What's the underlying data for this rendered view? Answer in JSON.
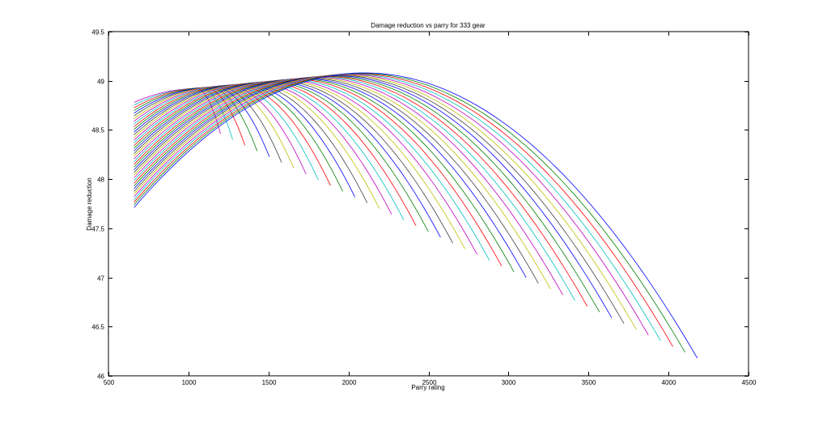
{
  "chart_data": {
    "type": "line",
    "title": "Damage reduction vs parry for 333 gear",
    "xlabel": "Parry rating",
    "ylabel": "Damage reduction",
    "xlim": [
      500,
      4500
    ],
    "ylim": [
      46,
      49.5
    ],
    "xticks": [
      500,
      1000,
      1500,
      2000,
      2500,
      3000,
      3500,
      4000,
      4500
    ],
    "xtick_labels": [
      "500",
      "1000",
      "1500",
      "2000",
      "2500",
      "3000",
      "3500",
      "4000",
      "4500"
    ],
    "yticks": [
      46,
      46.5,
      47,
      47.5,
      48,
      48.5,
      49,
      49.5
    ],
    "ytick_labels": [
      "46",
      "46.5",
      "47",
      "47.5",
      "48",
      "48.5",
      "49",
      "49.5"
    ],
    "grid": false,
    "legend": "none",
    "series_colors": [
      "#0000ff",
      "#008000",
      "#ff0000",
      "#00bfbf",
      "#bf00bf",
      "#bfbf00",
      "#404040"
    ],
    "series_count": 40,
    "series_shape": {
      "x_start": 660,
      "end_first": {
        "x": 1200,
        "y": 48.46
      },
      "end_last": {
        "x": 4180,
        "y": 46.18
      },
      "start_y_first": 48.78,
      "start_y_last": 47.71,
      "peak_first": {
        "x": 1050,
        "y": 48.92
      },
      "peak_last": {
        "x": 2100,
        "y": 49.08
      }
    }
  }
}
